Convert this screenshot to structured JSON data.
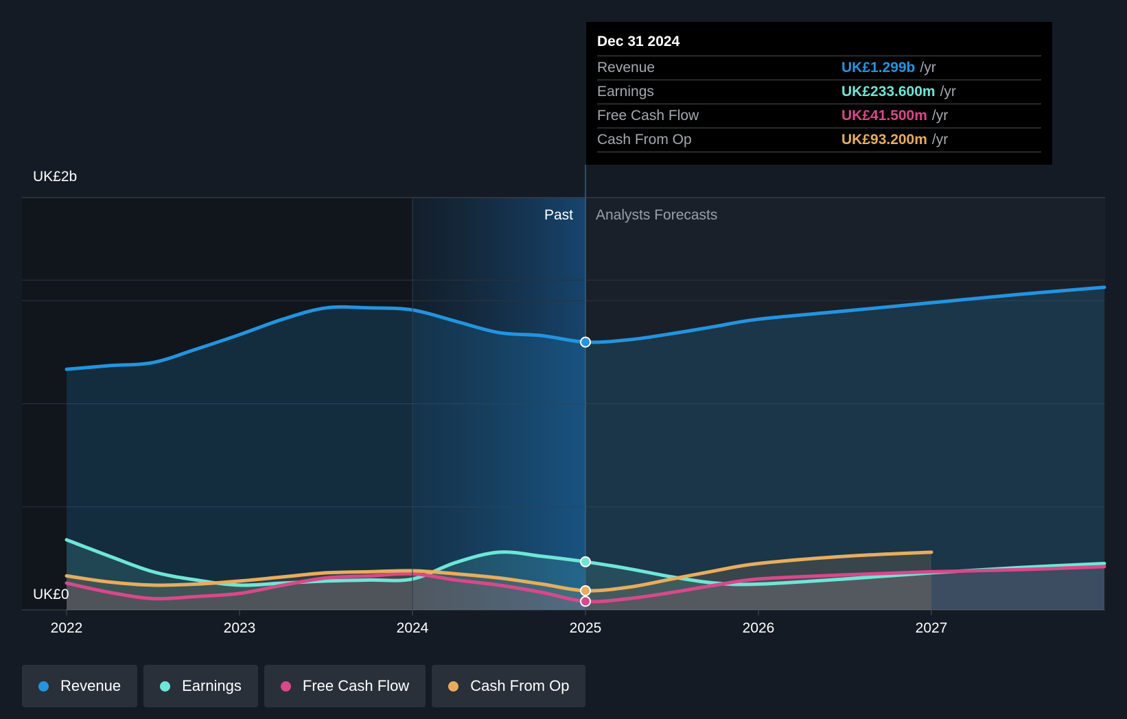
{
  "chart_data": {
    "type": "line",
    "x_range": [
      2021.75,
      2028.0
    ],
    "y_range": [
      0,
      2.0
    ],
    "y_unit": "UK£b",
    "x_ticks": [
      "2022",
      "2023",
      "2024",
      "2025",
      "2026",
      "2027"
    ],
    "y_tick_labels": {
      "top": "UK£2b",
      "bottom": "UK£0"
    },
    "gridlines_b": [
      0.5,
      1.0,
      1.5,
      1.6
    ],
    "past_start_year": 2024.0,
    "divider_year": 2025.0,
    "past_label": "Past",
    "forecast_label": "Analysts Forecasts",
    "series": [
      {
        "key": "revenue",
        "name": "Revenue",
        "color": "#2394df",
        "x": [
          2022.0,
          2022.25,
          2022.5,
          2022.75,
          2023.0,
          2023.25,
          2023.5,
          2023.75,
          2024.0,
          2024.25,
          2024.5,
          2024.75,
          2025.0,
          2025.25,
          2025.5,
          2025.75,
          2026.0,
          2026.5,
          2027.0,
          2027.5,
          2028.0
        ],
        "values": [
          1.167,
          1.185,
          1.2,
          1.265,
          1.335,
          1.41,
          1.465,
          1.465,
          1.455,
          1.4,
          1.345,
          1.33,
          1.299,
          1.31,
          1.34,
          1.375,
          1.41,
          1.45,
          1.49,
          1.53,
          1.565
        ]
      },
      {
        "key": "earnings",
        "name": "Earnings",
        "color": "#6ee6d6",
        "x": [
          2022.0,
          2022.25,
          2022.5,
          2022.75,
          2023.0,
          2023.25,
          2023.5,
          2023.75,
          2024.0,
          2024.25,
          2024.5,
          2024.75,
          2025.0,
          2025.25,
          2025.5,
          2025.75,
          2026.0,
          2026.5,
          2027.0,
          2027.5,
          2028.0
        ],
        "values": [
          0.34,
          0.26,
          0.185,
          0.145,
          0.12,
          0.13,
          0.14,
          0.145,
          0.15,
          0.23,
          0.28,
          0.26,
          0.2336,
          0.2,
          0.16,
          0.13,
          0.125,
          0.15,
          0.18,
          0.205,
          0.225
        ]
      },
      {
        "key": "fcf",
        "name": "Free Cash Flow",
        "color": "#d9488a",
        "x": [
          2022.0,
          2022.25,
          2022.5,
          2022.75,
          2023.0,
          2023.25,
          2023.5,
          2023.75,
          2024.0,
          2024.25,
          2024.5,
          2024.75,
          2025.0,
          2025.25,
          2025.5,
          2025.75,
          2026.0,
          2026.5,
          2027.0,
          2027.5,
          2028.0
        ],
        "values": [
          0.13,
          0.085,
          0.055,
          0.065,
          0.08,
          0.12,
          0.155,
          0.165,
          0.175,
          0.145,
          0.12,
          0.085,
          0.0415,
          0.055,
          0.085,
          0.12,
          0.15,
          0.17,
          0.185,
          0.195,
          0.21
        ]
      },
      {
        "key": "cfo",
        "name": "Cash From Op",
        "color": "#e8ad5c",
        "x": [
          2022.0,
          2022.25,
          2022.5,
          2022.75,
          2023.0,
          2023.25,
          2023.5,
          2023.75,
          2024.0,
          2024.25,
          2024.5,
          2024.75,
          2025.0,
          2025.25,
          2025.5,
          2025.75,
          2026.0,
          2026.5,
          2027.0
        ],
        "values": [
          0.165,
          0.135,
          0.12,
          0.125,
          0.14,
          0.16,
          0.18,
          0.185,
          0.19,
          0.175,
          0.155,
          0.125,
          0.0932,
          0.11,
          0.15,
          0.19,
          0.225,
          0.26,
          0.28
        ]
      }
    ],
    "highlight": {
      "x": 2025.0,
      "series_values": {
        "revenue": 1.299,
        "earnings": 0.2336,
        "fcf": 0.0415,
        "cfo": 0.0932
      }
    }
  },
  "tooltip": {
    "date": "Dec 31 2024",
    "rows": [
      {
        "label": "Revenue",
        "value": "UK£1.299b",
        "unit": "/yr",
        "color": "#2394df"
      },
      {
        "label": "Earnings",
        "value": "UK£233.600m",
        "unit": "/yr",
        "color": "#6ee6d6"
      },
      {
        "label": "Free Cash Flow",
        "value": "UK£41.500m",
        "unit": "/yr",
        "color": "#d9488a"
      },
      {
        "label": "Cash From Op",
        "value": "UK£93.200m",
        "unit": "/yr",
        "color": "#e8ad5c"
      }
    ]
  },
  "legend": [
    {
      "label": "Revenue",
      "color": "#2394df"
    },
    {
      "label": "Earnings",
      "color": "#6ee6d6"
    },
    {
      "label": "Free Cash Flow",
      "color": "#d9488a"
    },
    {
      "label": "Cash From Op",
      "color": "#e8ad5c"
    }
  ]
}
